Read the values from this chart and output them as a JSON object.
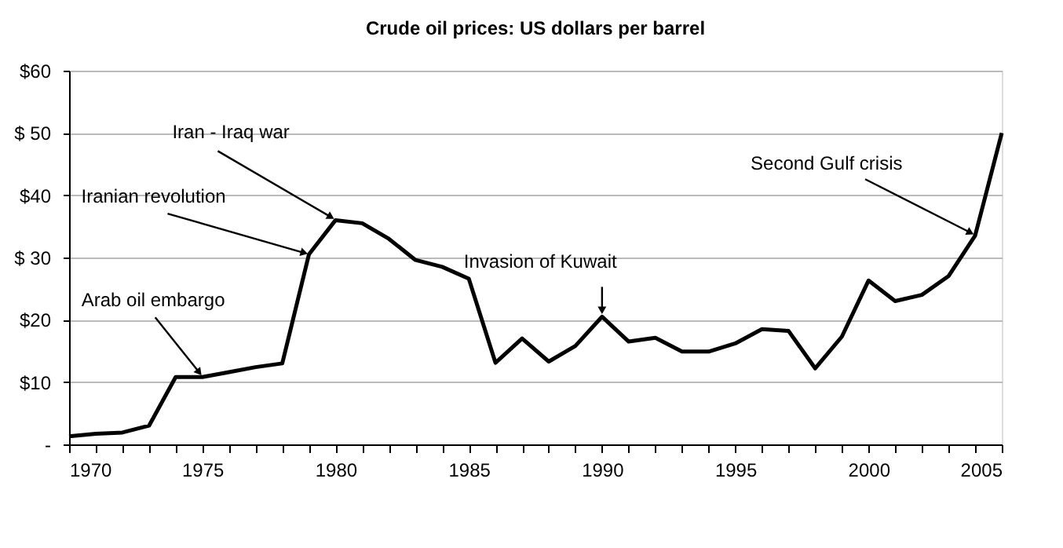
{
  "chart_data": {
    "type": "line",
    "title": "Crude oil prices: US dollars per barrel",
    "x": [
      1970,
      1971,
      1972,
      1973,
      1974,
      1975,
      1976,
      1977,
      1978,
      1979,
      1980,
      1981,
      1982,
      1983,
      1984,
      1985,
      1986,
      1987,
      1988,
      1989,
      1990,
      1991,
      1992,
      1993,
      1994,
      1995,
      1996,
      1997,
      1998,
      1999,
      2000,
      2001,
      2002,
      2003,
      2004,
      2005
    ],
    "series": [
      {
        "color": "#000000",
        "values": [
          1.3,
          1.7,
          1.9,
          3.0,
          10.8,
          10.8,
          11.6,
          12.4,
          13.0,
          30.5,
          36.0,
          35.5,
          33.0,
          29.6,
          28.5,
          26.6,
          13.1,
          17.0,
          13.3,
          15.8,
          20.5,
          16.5,
          17.1,
          14.9,
          14.9,
          16.2,
          18.5,
          18.2,
          12.2,
          17.3,
          26.3,
          23.0,
          24.0,
          27.0,
          33.5,
          50.0
        ]
      }
    ],
    "xlim": [
      1970,
      2005
    ],
    "xticks": [
      1970,
      {
        "value": 1971,
        "label": null
      },
      {
        "value": 1972,
        "label": null
      },
      {
        "value": 1973,
        "label": null
      },
      {
        "value": 1974,
        "label": null
      },
      1975,
      {
        "value": 1976,
        "label": null
      },
      {
        "value": 1977,
        "label": null
      },
      {
        "value": 1978,
        "label": null
      },
      {
        "value": 1979,
        "label": null
      },
      1980,
      {
        "value": 1981,
        "label": null
      },
      {
        "value": 1982,
        "label": null
      },
      {
        "value": 1983,
        "label": null
      },
      {
        "value": 1984,
        "label": null
      },
      1985,
      {
        "value": 1986,
        "label": null
      },
      {
        "value": 1987,
        "label": null
      },
      {
        "value": 1988,
        "label": null
      },
      {
        "value": 1989,
        "label": null
      },
      1990,
      {
        "value": 1991,
        "label": null
      },
      {
        "value": 1992,
        "label": null
      },
      {
        "value": 1993,
        "label": null
      },
      {
        "value": 1994,
        "label": null
      },
      1995,
      {
        "value": 1996,
        "label": null
      },
      {
        "value": 1997,
        "label": null
      },
      {
        "value": 1998,
        "label": null
      },
      {
        "value": 1999,
        "label": null
      },
      2000,
      {
        "value": 2001,
        "label": null
      },
      {
        "value": 2002,
        "label": null
      },
      {
        "value": 2003,
        "label": null
      },
      {
        "value": 2004,
        "label": null
      },
      2005
    ],
    "ylim": [
      0,
      60
    ],
    "yticks": [
      {
        "value": 0,
        "label": "-"
      },
      {
        "value": 10,
        "label": "$10"
      },
      {
        "value": 20,
        "label": "$20"
      },
      {
        "value": 30,
        "label": "$ 30"
      },
      {
        "value": 40,
        "label": "$40"
      },
      {
        "value": 50,
        "label": "$ 50"
      },
      {
        "value": 60,
        "label": "$60"
      }
    ],
    "grid": "y",
    "marker": "none",
    "line_style": "solid",
    "annotations": [
      {
        "text": "Arab oil embargo",
        "x": 1975,
        "y": 10.8
      },
      {
        "text": "Iranian revolution",
        "x": 1979,
        "y": 30.5
      },
      {
        "text": "Iran - Iraq war",
        "x": 1980,
        "y": 36.0
      },
      {
        "text": "Invasion of Kuwait",
        "x": 1990,
        "y": 20.5
      },
      {
        "text": "Second Gulf crisis",
        "x": 2004,
        "y": 33.5
      }
    ]
  }
}
